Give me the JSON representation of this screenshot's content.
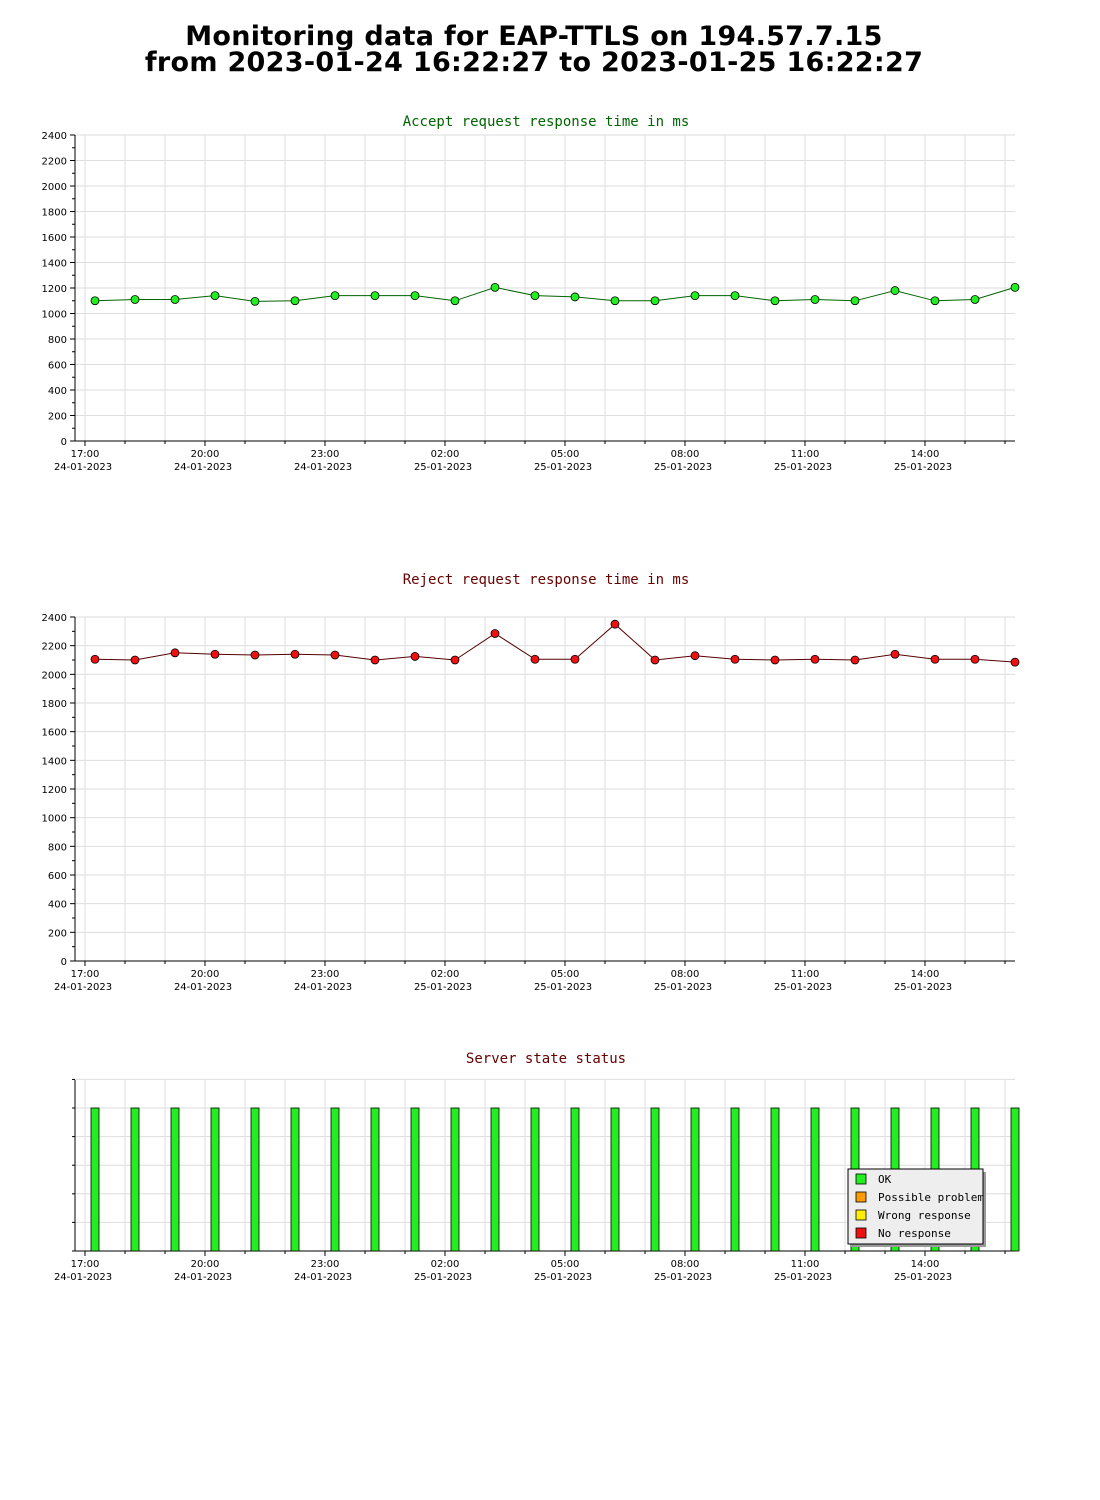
{
  "page": {
    "title_line1": "Monitoring data for EAP-TTLS on 194.57.7.15",
    "title_line2": "from 2023-01-24 16:22:27 to 2023-01-25 16:22:27"
  },
  "x_ticks": [
    {
      "time": "17:00",
      "date": "24-01-2023"
    },
    {
      "time": "20:00",
      "date": "24-01-2023"
    },
    {
      "time": "23:00",
      "date": "24-01-2023"
    },
    {
      "time": "02:00",
      "date": "25-01-2023"
    },
    {
      "time": "05:00",
      "date": "25-01-2023"
    },
    {
      "time": "08:00",
      "date": "25-01-2023"
    },
    {
      "time": "11:00",
      "date": "25-01-2023"
    },
    {
      "time": "14:00",
      "date": "25-01-2023"
    }
  ],
  "chart_data": [
    {
      "type": "line",
      "title": "Accept request response time in ms",
      "title_color": "#006400",
      "point_color": "#22ee22",
      "line_color": "#006400",
      "grid": true,
      "ylim": [
        0,
        2400
      ],
      "y_ticks": [
        0,
        200,
        400,
        600,
        800,
        1000,
        1200,
        1400,
        1600,
        1800,
        2000,
        2200,
        2400
      ],
      "x": [
        "2023-01-24 17:15",
        "2023-01-24 18:15",
        "2023-01-24 19:15",
        "2023-01-24 20:15",
        "2023-01-24 21:15",
        "2023-01-24 22:15",
        "2023-01-24 23:15",
        "2023-01-25 00:15",
        "2023-01-25 01:15",
        "2023-01-25 02:15",
        "2023-01-25 03:15",
        "2023-01-25 04:15",
        "2023-01-25 05:15",
        "2023-01-25 06:15",
        "2023-01-25 07:15",
        "2023-01-25 08:15",
        "2023-01-25 09:15",
        "2023-01-25 10:15",
        "2023-01-25 11:15",
        "2023-01-25 12:15",
        "2023-01-25 13:15",
        "2023-01-25 14:15",
        "2023-01-25 15:15",
        "2023-01-25 16:15"
      ],
      "values": [
        1100,
        1110,
        1110,
        1140,
        1095,
        1100,
        1140,
        1140,
        1140,
        1100,
        1205,
        1140,
        1130,
        1100,
        1100,
        1140,
        1140,
        1100,
        1110,
        1100,
        1180,
        1100,
        1110,
        1205
      ]
    },
    {
      "type": "line",
      "title": "Reject request response time in ms",
      "title_color": "#660000",
      "point_color": "#ee1111",
      "line_color": "#550000",
      "grid": true,
      "ylim": [
        0,
        2400
      ],
      "y_ticks": [
        0,
        200,
        400,
        600,
        800,
        1000,
        1200,
        1400,
        1600,
        1800,
        2000,
        2200,
        2400
      ],
      "x": [
        "2023-01-24 17:15",
        "2023-01-24 18:15",
        "2023-01-24 19:15",
        "2023-01-24 20:15",
        "2023-01-24 21:15",
        "2023-01-24 22:15",
        "2023-01-24 23:15",
        "2023-01-25 00:15",
        "2023-01-25 01:15",
        "2023-01-25 02:15",
        "2023-01-25 03:15",
        "2023-01-25 04:15",
        "2023-01-25 05:15",
        "2023-01-25 06:15",
        "2023-01-25 07:15",
        "2023-01-25 08:15",
        "2023-01-25 09:15",
        "2023-01-25 10:15",
        "2023-01-25 11:15",
        "2023-01-25 12:15",
        "2023-01-25 13:15",
        "2023-01-25 14:15",
        "2023-01-25 15:15",
        "2023-01-25 16:15"
      ],
      "values": [
        2105,
        2100,
        2150,
        2140,
        2135,
        2140,
        2135,
        2100,
        2125,
        2100,
        2285,
        2105,
        2105,
        2350,
        2100,
        2130,
        2105,
        2100,
        2105,
        2100,
        2140,
        2105,
        2105,
        2085
      ]
    },
    {
      "type": "bar",
      "title": "Server state status",
      "title_color": "#660000",
      "grid": true,
      "x": [
        "2023-01-24 17:15",
        "2023-01-24 18:15",
        "2023-01-24 19:15",
        "2023-01-24 20:15",
        "2023-01-24 21:15",
        "2023-01-24 22:15",
        "2023-01-24 23:15",
        "2023-01-25 00:15",
        "2023-01-25 01:15",
        "2023-01-25 02:15",
        "2023-01-25 03:15",
        "2023-01-25 04:15",
        "2023-01-25 05:15",
        "2023-01-25 06:15",
        "2023-01-25 07:15",
        "2023-01-25 08:15",
        "2023-01-25 09:15",
        "2023-01-25 10:15",
        "2023-01-25 11:15",
        "2023-01-25 12:15",
        "2023-01-25 13:15",
        "2023-01-25 14:15",
        "2023-01-25 15:15",
        "2023-01-25 16:15"
      ],
      "states": [
        "OK",
        "OK",
        "OK",
        "OK",
        "OK",
        "OK",
        "OK",
        "OK",
        "OK",
        "OK",
        "OK",
        "OK",
        "OK",
        "OK",
        "OK",
        "OK",
        "OK",
        "OK",
        "OK",
        "OK",
        "OK",
        "OK",
        "OK",
        "OK"
      ],
      "legend_position": "bottom-right",
      "legend": [
        {
          "label": "OK",
          "color": "#22ee22"
        },
        {
          "label": "Possible problem",
          "color": "#ff9900"
        },
        {
          "label": "Wrong response",
          "color": "#ffee00"
        },
        {
          "label": "No response",
          "color": "#ee1111"
        }
      ]
    }
  ]
}
